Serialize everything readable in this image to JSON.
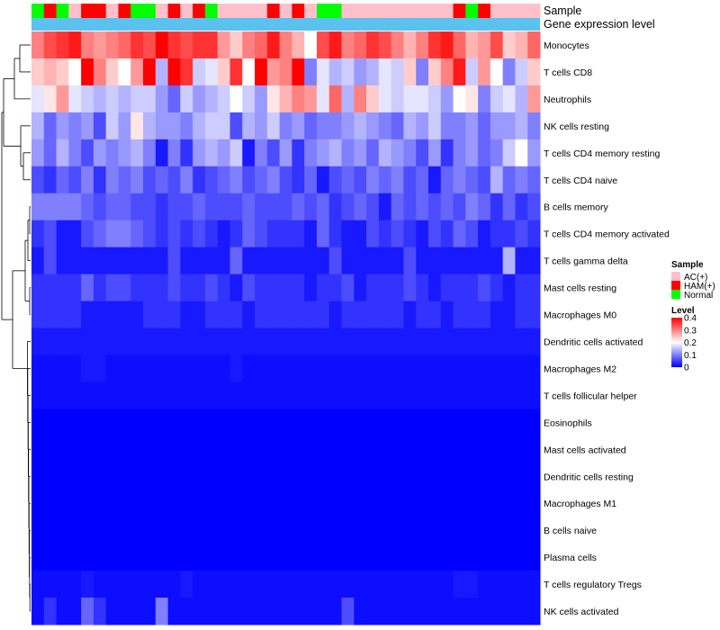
{
  "chart_data": {
    "type": "heatmap",
    "annotation_rows": [
      {
        "name": "Sample",
        "label": "Sample"
      },
      {
        "name": "Gene expression level",
        "label": "Gene expression level",
        "color": "#5bc2ef"
      }
    ],
    "sample_groups": [
      "N",
      "H",
      "N",
      "A",
      "H",
      "H",
      "A",
      "H",
      "N",
      "N",
      "A",
      "H",
      "A",
      "H",
      "N",
      "A",
      "A",
      "A",
      "A",
      "H",
      "A",
      "H",
      "A",
      "N",
      "N",
      "A",
      "A",
      "A",
      "A",
      "A",
      "A",
      "A",
      "A",
      "A",
      "H",
      "N",
      "H",
      "A",
      "A",
      "A",
      "A"
    ],
    "row_labels": [
      "Monocytes",
      "T cells CD8",
      "Neutrophils",
      "NK cells resting",
      "T cells CD4 memory resting",
      "T cells CD4 naive",
      "B cells memory",
      "T cells CD4 memory activated",
      "T cells gamma delta",
      "Mast cells resting",
      "Macrophages M0",
      "Dendritic cells activated",
      "Macrophages M2",
      "T cells follicular helper",
      "Eosinophils",
      "Mast cells activated",
      "Dendritic cells resting",
      "Macrophages M1",
      "B cells naive",
      "Plasma cells",
      "T cells regulatory  Tregs",
      "NK cells activated"
    ],
    "values": [
      [
        0.3,
        0.34,
        0.36,
        0.38,
        0.3,
        0.28,
        0.3,
        0.32,
        0.36,
        0.34,
        0.4,
        0.36,
        0.34,
        0.36,
        0.36,
        0.28,
        0.24,
        0.3,
        0.32,
        0.38,
        0.3,
        0.26,
        0.2,
        0.34,
        0.38,
        0.3,
        0.32,
        0.36,
        0.34,
        0.3,
        0.26,
        0.3,
        0.36,
        0.38,
        0.32,
        0.26,
        0.28,
        0.34,
        0.24,
        0.26,
        0.32
      ],
      [
        0.24,
        0.26,
        0.24,
        0.2,
        0.4,
        0.3,
        0.24,
        0.2,
        0.28,
        0.4,
        0.14,
        0.4,
        0.36,
        0.16,
        0.18,
        0.24,
        0.36,
        0.2,
        0.4,
        0.28,
        0.3,
        0.4,
        0.1,
        0.18,
        0.14,
        0.16,
        0.12,
        0.14,
        0.18,
        0.16,
        0.24,
        0.1,
        0.24,
        0.3,
        0.38,
        0.16,
        0.28,
        0.2,
        0.1,
        0.16,
        0.24
      ],
      [
        0.18,
        0.22,
        0.28,
        0.18,
        0.16,
        0.14,
        0.16,
        0.14,
        0.16,
        0.16,
        0.12,
        0.08,
        0.16,
        0.12,
        0.14,
        0.16,
        0.2,
        0.16,
        0.12,
        0.22,
        0.26,
        0.3,
        0.28,
        0.18,
        0.32,
        0.14,
        0.3,
        0.24,
        0.18,
        0.16,
        0.18,
        0.18,
        0.16,
        0.12,
        0.2,
        0.22,
        0.1,
        0.16,
        0.18,
        0.14,
        0.28
      ],
      [
        0.14,
        0.08,
        0.12,
        0.1,
        0.12,
        0.06,
        0.16,
        0.12,
        0.22,
        0.14,
        0.12,
        0.12,
        0.1,
        0.14,
        0.16,
        0.16,
        0.06,
        0.14,
        0.12,
        0.16,
        0.1,
        0.12,
        0.08,
        0.1,
        0.1,
        0.12,
        0.14,
        0.12,
        0.1,
        0.08,
        0.14,
        0.12,
        0.16,
        0.1,
        0.1,
        0.12,
        0.08,
        0.12,
        0.12,
        0.14,
        0.1
      ],
      [
        0.12,
        0.08,
        0.14,
        0.1,
        0.06,
        0.12,
        0.1,
        0.12,
        0.14,
        0.1,
        0.02,
        0.1,
        0.04,
        0.12,
        0.14,
        0.12,
        0.16,
        0.02,
        0.1,
        0.06,
        0.12,
        0.04,
        0.1,
        0.12,
        0.14,
        0.1,
        0.12,
        0.08,
        0.14,
        0.12,
        0.1,
        0.06,
        0.12,
        0.04,
        0.1,
        0.12,
        0.08,
        0.1,
        0.16,
        0.2,
        0.12
      ],
      [
        0.06,
        0.04,
        0.08,
        0.06,
        0.1,
        0.04,
        0.1,
        0.08,
        0.1,
        0.06,
        0.08,
        0.06,
        0.1,
        0.04,
        0.06,
        0.08,
        0.1,
        0.06,
        0.08,
        0.1,
        0.06,
        0.04,
        0.08,
        0.02,
        0.06,
        0.08,
        0.06,
        0.1,
        0.08,
        0.1,
        0.06,
        0.08,
        0.02,
        0.08,
        0.1,
        0.08,
        0.06,
        0.14,
        0.08,
        0.1,
        0.08
      ],
      [
        0.1,
        0.1,
        0.1,
        0.1,
        0.08,
        0.06,
        0.08,
        0.08,
        0.06,
        0.06,
        0.04,
        0.06,
        0.06,
        0.08,
        0.06,
        0.06,
        0.06,
        0.08,
        0.06,
        0.06,
        0.06,
        0.08,
        0.06,
        0.08,
        0.04,
        0.06,
        0.08,
        0.06,
        0.02,
        0.08,
        0.06,
        0.08,
        0.06,
        0.08,
        0.06,
        0.1,
        0.08,
        0.04,
        0.08,
        0.04,
        0.06
      ],
      [
        0.04,
        0.06,
        0.02,
        0.02,
        0.06,
        0.08,
        0.1,
        0.1,
        0.08,
        0.06,
        0.04,
        0.06,
        0.04,
        0.06,
        0.04,
        0.02,
        0.04,
        0.08,
        0.06,
        0.04,
        0.04,
        0.04,
        0.02,
        0.08,
        0.04,
        0.02,
        0.02,
        0.06,
        0.04,
        0.06,
        0.04,
        0.02,
        0.06,
        0.04,
        0.08,
        0.06,
        0.02,
        0.04,
        0.04,
        0.06,
        0.04
      ],
      [
        0.02,
        0.06,
        0.02,
        0.02,
        0.02,
        0.02,
        0.02,
        0.02,
        0.02,
        0.02,
        0.02,
        0.06,
        0.02,
        0.02,
        0.02,
        0.02,
        0.08,
        0.02,
        0.02,
        0.02,
        0.02,
        0.02,
        0.02,
        0.02,
        0.06,
        0.02,
        0.02,
        0.02,
        0.02,
        0.02,
        0.06,
        0.02,
        0.02,
        0.02,
        0.02,
        0.02,
        0.02,
        0.02,
        0.14,
        0.02,
        0.02
      ],
      [
        0.04,
        0.04,
        0.04,
        0.04,
        0.08,
        0.04,
        0.06,
        0.06,
        0.04,
        0.04,
        0.04,
        0.06,
        0.04,
        0.04,
        0.06,
        0.04,
        0.02,
        0.06,
        0.04,
        0.04,
        0.04,
        0.04,
        0.02,
        0.04,
        0.04,
        0.06,
        0.02,
        0.04,
        0.04,
        0.04,
        0.06,
        0.04,
        0.02,
        0.04,
        0.04,
        0.04,
        0.06,
        0.04,
        0.02,
        0.04,
        0.04
      ],
      [
        0.04,
        0.04,
        0.04,
        0.04,
        0.02,
        0.02,
        0.02,
        0.02,
        0.02,
        0.04,
        0.04,
        0.04,
        0.02,
        0.02,
        0.04,
        0.04,
        0.04,
        0.02,
        0.04,
        0.04,
        0.04,
        0.04,
        0.04,
        0.04,
        0.02,
        0.04,
        0.04,
        0.04,
        0.04,
        0.04,
        0.02,
        0.04,
        0.04,
        0.02,
        0.04,
        0.04,
        0.04,
        0.02,
        0.02,
        0.04,
        0.04
      ],
      [
        0.02,
        0.02,
        0.02,
        0.02,
        0.02,
        0.02,
        0.02,
        0.02,
        0.02,
        0.02,
        0.02,
        0.02,
        0.02,
        0.02,
        0.02,
        0.02,
        0.02,
        0.02,
        0.02,
        0.02,
        0.02,
        0.02,
        0.02,
        0.02,
        0.02,
        0.02,
        0.02,
        0.02,
        0.02,
        0.02,
        0.02,
        0.02,
        0.02,
        0.02,
        0.02,
        0.02,
        0.02,
        0.02,
        0.02,
        0.02,
        0.02
      ],
      [
        0.01,
        0.01,
        0.01,
        0.01,
        0.02,
        0.02,
        0.01,
        0.01,
        0.01,
        0.01,
        0.01,
        0.01,
        0.01,
        0.01,
        0.01,
        0.01,
        0.02,
        0.01,
        0.01,
        0.01,
        0.01,
        0.01,
        0.01,
        0.01,
        0.01,
        0.01,
        0.01,
        0.01,
        0.01,
        0.01,
        0.01,
        0.01,
        0.01,
        0.01,
        0.01,
        0.01,
        0.01,
        0.01,
        0.01,
        0.01,
        0.01
      ],
      [
        0.01,
        0.01,
        0.01,
        0.01,
        0.01,
        0.01,
        0.01,
        0.01,
        0.01,
        0.01,
        0.01,
        0.01,
        0.01,
        0.01,
        0.01,
        0.01,
        0.01,
        0.01,
        0.01,
        0.01,
        0.01,
        0.01,
        0.01,
        0.01,
        0.01,
        0.01,
        0.01,
        0.01,
        0.01,
        0.01,
        0.01,
        0.01,
        0.01,
        0.01,
        0.01,
        0.01,
        0.01,
        0.01,
        0.01,
        0.01,
        0.01
      ],
      [
        0.0,
        0.0,
        0.0,
        0.0,
        0.0,
        0.0,
        0.0,
        0.0,
        0.0,
        0.0,
        0.0,
        0.0,
        0.0,
        0.0,
        0.0,
        0.0,
        0.0,
        0.0,
        0.0,
        0.0,
        0.0,
        0.0,
        0.0,
        0.0,
        0.0,
        0.0,
        0.0,
        0.0,
        0.0,
        0.0,
        0.0,
        0.0,
        0.0,
        0.0,
        0.0,
        0.0,
        0.0,
        0.0,
        0.0,
        0.0,
        0.0
      ],
      [
        0.0,
        0.0,
        0.0,
        0.0,
        0.0,
        0.0,
        0.0,
        0.0,
        0.0,
        0.0,
        0.0,
        0.0,
        0.0,
        0.0,
        0.0,
        0.0,
        0.0,
        0.0,
        0.0,
        0.0,
        0.0,
        0.0,
        0.0,
        0.0,
        0.0,
        0.0,
        0.0,
        0.0,
        0.0,
        0.0,
        0.0,
        0.0,
        0.0,
        0.0,
        0.0,
        0.0,
        0.0,
        0.0,
        0.0,
        0.0,
        0.0
      ],
      [
        0.0,
        0.0,
        0.0,
        0.0,
        0.0,
        0.0,
        0.0,
        0.0,
        0.0,
        0.0,
        0.0,
        0.0,
        0.0,
        0.0,
        0.0,
        0.0,
        0.0,
        0.0,
        0.0,
        0.0,
        0.0,
        0.0,
        0.0,
        0.0,
        0.0,
        0.0,
        0.0,
        0.0,
        0.0,
        0.0,
        0.0,
        0.0,
        0.0,
        0.0,
        0.0,
        0.0,
        0.0,
        0.0,
        0.0,
        0.0,
        0.0
      ],
      [
        0.0,
        0.0,
        0.0,
        0.0,
        0.0,
        0.0,
        0.0,
        0.0,
        0.0,
        0.0,
        0.0,
        0.0,
        0.0,
        0.0,
        0.0,
        0.0,
        0.0,
        0.0,
        0.0,
        0.0,
        0.0,
        0.0,
        0.0,
        0.0,
        0.0,
        0.0,
        0.0,
        0.0,
        0.0,
        0.0,
        0.0,
        0.0,
        0.0,
        0.0,
        0.0,
        0.0,
        0.0,
        0.0,
        0.0,
        0.0,
        0.0
      ],
      [
        0.0,
        0.0,
        0.0,
        0.0,
        0.0,
        0.0,
        0.0,
        0.0,
        0.0,
        0.0,
        0.0,
        0.0,
        0.0,
        0.0,
        0.0,
        0.0,
        0.0,
        0.0,
        0.0,
        0.0,
        0.0,
        0.0,
        0.0,
        0.0,
        0.0,
        0.0,
        0.0,
        0.0,
        0.0,
        0.0,
        0.0,
        0.0,
        0.0,
        0.0,
        0.0,
        0.0,
        0.0,
        0.0,
        0.0,
        0.0,
        0.0
      ],
      [
        0.0,
        0.0,
        0.0,
        0.0,
        0.0,
        0.0,
        0.0,
        0.0,
        0.0,
        0.0,
        0.0,
        0.0,
        0.0,
        0.0,
        0.0,
        0.0,
        0.0,
        0.0,
        0.0,
        0.0,
        0.0,
        0.0,
        0.0,
        0.0,
        0.0,
        0.0,
        0.0,
        0.0,
        0.0,
        0.0,
        0.0,
        0.0,
        0.0,
        0.0,
        0.0,
        0.0,
        0.0,
        0.0,
        0.0,
        0.0,
        0.0
      ],
      [
        0.01,
        0.01,
        0.01,
        0.01,
        0.02,
        0.01,
        0.01,
        0.01,
        0.01,
        0.01,
        0.01,
        0.01,
        0.02,
        0.01,
        0.01,
        0.01,
        0.01,
        0.01,
        0.01,
        0.01,
        0.01,
        0.01,
        0.01,
        0.01,
        0.01,
        0.01,
        0.01,
        0.01,
        0.01,
        0.01,
        0.01,
        0.01,
        0.01,
        0.01,
        0.02,
        0.02,
        0.01,
        0.01,
        0.01,
        0.01,
        0.01
      ],
      [
        0.01,
        0.04,
        0.01,
        0.01,
        0.08,
        0.04,
        0.01,
        0.01,
        0.01,
        0.01,
        0.1,
        0.01,
        0.01,
        0.01,
        0.01,
        0.01,
        0.01,
        0.01,
        0.01,
        0.01,
        0.01,
        0.01,
        0.01,
        0.01,
        0.01,
        0.06,
        0.01,
        0.01,
        0.01,
        0.01,
        0.01,
        0.01,
        0.01,
        0.01,
        0.01,
        0.01,
        0.01,
        0.01,
        0.01,
        0.01,
        0.01
      ]
    ],
    "color_scale": {
      "min": 0,
      "max": 0.4,
      "low": "#0000ff",
      "mid": "#ffffff",
      "high": "#ff0000",
      "mid_value": 0.2
    },
    "legend": {
      "sample": {
        "title": "Sample",
        "items": [
          {
            "code": "A",
            "label": "AC(+)",
            "color": "#ffc0cb"
          },
          {
            "code": "H",
            "label": "HAM(+)",
            "color": "#ff0000"
          },
          {
            "code": "N",
            "label": "Normal",
            "color": "#00ff00"
          }
        ]
      },
      "level": {
        "title": "Level",
        "ticks": [
          {
            "value": 0.4,
            "label": "0.4"
          },
          {
            "value": 0.3,
            "label": "0.3"
          },
          {
            "value": 0.2,
            "label": "0.2"
          },
          {
            "value": 0.1,
            "label": "0.1"
          },
          {
            "value": 0,
            "label": "0"
          }
        ]
      }
    },
    "row_dendrogram": true
  }
}
